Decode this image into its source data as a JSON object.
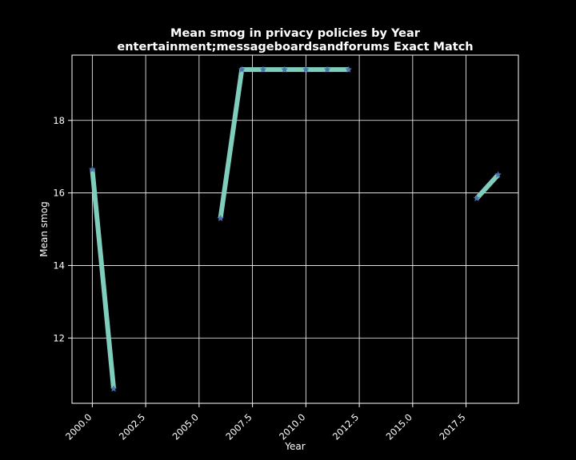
{
  "chart_data": {
    "type": "line",
    "title": "Mean smog in privacy policies by Year",
    "subtitle": "entertainment;messageboardsandforums Exact Match",
    "xlabel": "Year",
    "ylabel": "Mean smog",
    "xlim": [
      1999.05,
      2019.95
    ],
    "ylim": [
      10.2,
      19.8
    ],
    "xticks": [
      2000.0,
      2002.5,
      2005.0,
      2007.5,
      2010.0,
      2012.5,
      2015.0,
      2017.5
    ],
    "xtick_labels": [
      "2000.0",
      "2002.5",
      "2005.0",
      "2007.5",
      "2010.0",
      "2012.5",
      "2015.0",
      "2017.5"
    ],
    "yticks": [
      12,
      14,
      16,
      18
    ],
    "ytick_labels": [
      "12",
      "14",
      "16",
      "18"
    ],
    "grid": true,
    "legend": "none",
    "series": [
      {
        "line_color": "#7fcdbb",
        "marker_color": "#4c72b0",
        "marker": "star",
        "segments": [
          [
            [
              2000,
              16.65
            ],
            [
              2001,
              10.6
            ]
          ],
          [
            [
              2006,
              15.3
            ],
            [
              2007,
              19.4
            ],
            [
              2008,
              19.4
            ],
            [
              2009,
              19.4
            ],
            [
              2010,
              19.4
            ],
            [
              2011,
              19.4
            ],
            [
              2012,
              19.4
            ]
          ],
          [
            [
              2018,
              15.85
            ],
            [
              2019,
              16.5
            ]
          ]
        ]
      }
    ]
  },
  "colors": {
    "background": "#000000",
    "axes_edge": "#ffffff",
    "grid": "#ffffff",
    "text": "#ffffff"
  }
}
